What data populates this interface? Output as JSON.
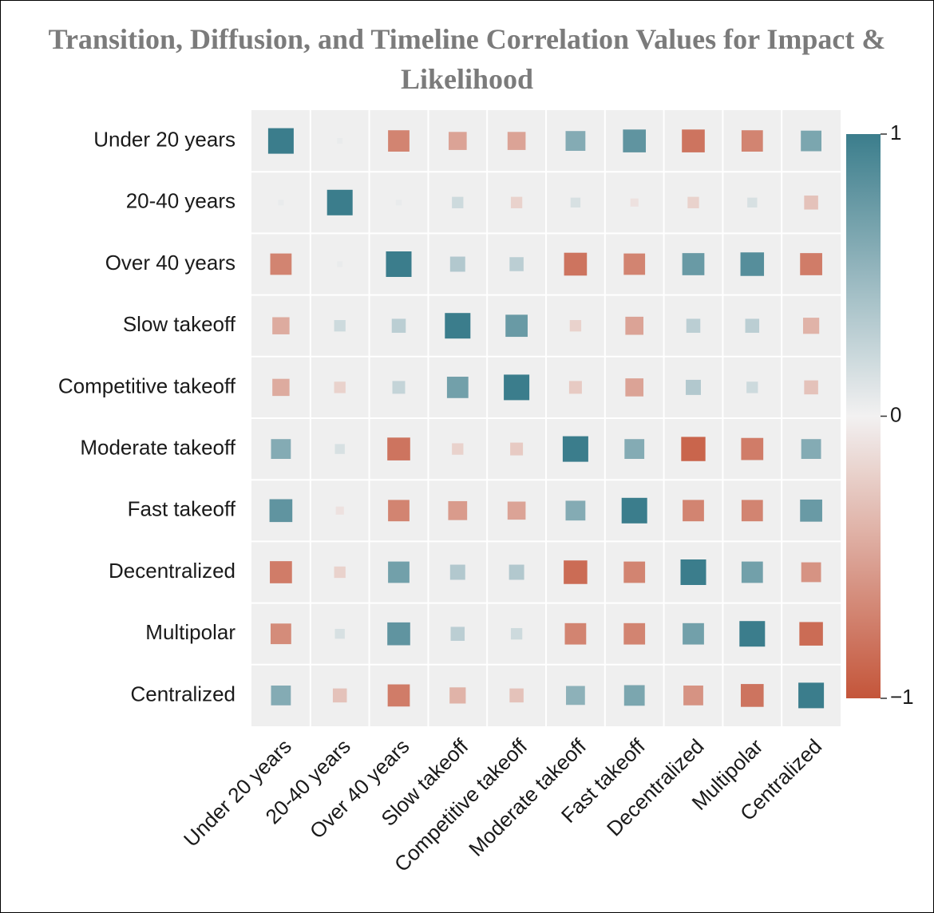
{
  "chart_data": {
    "type": "heatmap",
    "title": "Transition, Diffusion, and Timeline Correlation Values for Impact & Likelihood",
    "categories": [
      "Under 20 years",
      "20-40 years",
      "Over 40 years",
      "Slow takeoff",
      "Competitive takeoff",
      "Moderate takeoff",
      "Fast takeoff",
      "Decentralized",
      "Multipolar",
      "Centralized"
    ],
    "values": [
      [
        1,
        0.05,
        -0.7,
        -0.5,
        -0.5,
        0.6,
        0.8,
        -0.8,
        -0.7,
        0.65
      ],
      [
        0.05,
        1,
        0.05,
        0.2,
        -0.2,
        0.15,
        -0.1,
        -0.2,
        0.15,
        -0.3
      ],
      [
        -0.7,
        0.05,
        1,
        0.35,
        0.3,
        -0.8,
        -0.7,
        0.75,
        0.85,
        -0.75
      ],
      [
        -0.45,
        0.2,
        0.3,
        1,
        0.75,
        -0.2,
        -0.5,
        0.3,
        0.3,
        -0.4
      ],
      [
        -0.45,
        -0.2,
        0.25,
        0.7,
        1,
        -0.25,
        -0.5,
        0.35,
        0.2,
        -0.3
      ],
      [
        0.6,
        0.15,
        -0.8,
        -0.2,
        -0.25,
        1,
        0.6,
        -0.9,
        -0.75,
        0.6
      ],
      [
        0.8,
        -0.1,
        -0.7,
        -0.55,
        -0.5,
        0.6,
        1,
        -0.7,
        -0.7,
        0.75
      ],
      [
        -0.75,
        -0.2,
        0.7,
        0.35,
        0.35,
        -0.85,
        -0.7,
        1,
        0.7,
        -0.6
      ],
      [
        -0.65,
        0.15,
        0.8,
        0.3,
        0.2,
        -0.7,
        -0.7,
        0.7,
        1,
        -0.85
      ],
      [
        0.6,
        -0.3,
        -0.75,
        -0.4,
        -0.3,
        0.55,
        0.65,
        -0.6,
        -0.8,
        1
      ]
    ],
    "vlim": [
      -1,
      1
    ],
    "colorbar_ticks": [
      {
        "value": -1,
        "label": "−1"
      },
      0,
      1
    ],
    "colors": {
      "negative": "#c4553a",
      "neutral": "#f2f1f1",
      "positive": "#3b7d8c"
    }
  }
}
